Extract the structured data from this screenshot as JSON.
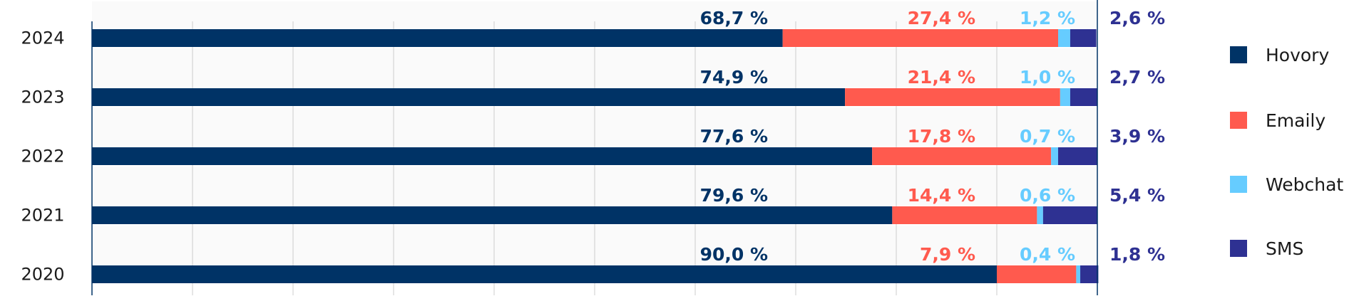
{
  "colors": {
    "Hovory": "#003366",
    "Emaily": "#ff5a4e",
    "Webchat": "#66ccff",
    "SMS": "#2e3192",
    "grid": "#cccccc",
    "axis": "#003366",
    "stripe": "#fafafa"
  },
  "chart_data": {
    "type": "bar",
    "orientation": "horizontal",
    "stacked": true,
    "categories": [
      "2024",
      "2023",
      "2022",
      "2021",
      "2020"
    ],
    "series": [
      {
        "name": "Hovory",
        "values": [
          68.7,
          74.9,
          77.6,
          79.6,
          90.0
        ],
        "labels": [
          "68,7 %",
          "74,9 %",
          "77,6 %",
          "79,6 %",
          "90,0 %"
        ]
      },
      {
        "name": "Emaily",
        "values": [
          27.4,
          21.4,
          17.8,
          14.4,
          7.9
        ],
        "labels": [
          "27,4 %",
          "21,4 %",
          "17,8 %",
          "14,4 %",
          "7,9 %"
        ]
      },
      {
        "name": "Webchat",
        "values": [
          1.2,
          1.0,
          0.7,
          0.6,
          0.4
        ],
        "labels": [
          "1,2 %",
          "1,0 %",
          "0,7 %",
          "0,6 %",
          "0,4 %"
        ]
      },
      {
        "name": "SMS",
        "values": [
          2.6,
          2.7,
          3.9,
          5.4,
          1.8
        ],
        "labels": [
          "2,6 %",
          "2,7 %",
          "3,9 %",
          "5,4 %",
          "1,8 %"
        ]
      }
    ],
    "xlim": [
      0,
      100
    ],
    "grid": true,
    "legend_position": "right"
  }
}
